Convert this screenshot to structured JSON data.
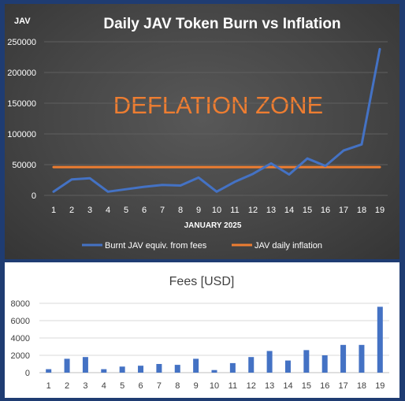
{
  "chart_data": [
    {
      "type": "line",
      "title": "Daily JAV Token Burn vs Inflation",
      "ylabel": "JAV",
      "xlabel": "JANUARY 2025",
      "ylim": [
        0,
        250000
      ],
      "yticks": [
        "0",
        "50000",
        "100000",
        "150000",
        "200000",
        "250000"
      ],
      "categories": [
        "1",
        "2",
        "3",
        "4",
        "5",
        "6",
        "7",
        "8",
        "9",
        "10",
        "11",
        "12",
        "13",
        "14",
        "15",
        "16",
        "17",
        "18",
        "19"
      ],
      "annotation": "DEFLATION ZONE",
      "grid": true,
      "legend_position": "bottom",
      "series": [
        {
          "name": "Burnt JAV equiv. from fees",
          "color": "#4472c4",
          "values": [
            6000,
            26000,
            28000,
            6000,
            10000,
            14000,
            17000,
            16000,
            29000,
            6000,
            22000,
            35000,
            52000,
            34000,
            60000,
            48000,
            73000,
            83000,
            238000
          ]
        },
        {
          "name": "JAV daily inflation",
          "color": "#ed7d31",
          "values": [
            46000,
            46000,
            46000,
            46000,
            46000,
            46000,
            46000,
            46000,
            46000,
            46000,
            46000,
            46000,
            46000,
            46000,
            46000,
            46000,
            46000,
            46000,
            46000
          ]
        }
      ]
    },
    {
      "type": "bar",
      "title": "Fees [USD]",
      "ylim": [
        0,
        8000
      ],
      "yticks": [
        "0",
        "2000",
        "4000",
        "6000",
        "8000"
      ],
      "categories": [
        "1",
        "2",
        "3",
        "4",
        "5",
        "6",
        "7",
        "8",
        "9",
        "10",
        "11",
        "12",
        "13",
        "14",
        "15",
        "16",
        "17",
        "18",
        "19"
      ],
      "grid": true,
      "color": "#4472c4",
      "values": [
        400,
        1600,
        1800,
        400,
        700,
        800,
        1000,
        900,
        1600,
        300,
        1100,
        1800,
        2500,
        1400,
        2600,
        2000,
        3200,
        3200,
        7600
      ]
    }
  ]
}
